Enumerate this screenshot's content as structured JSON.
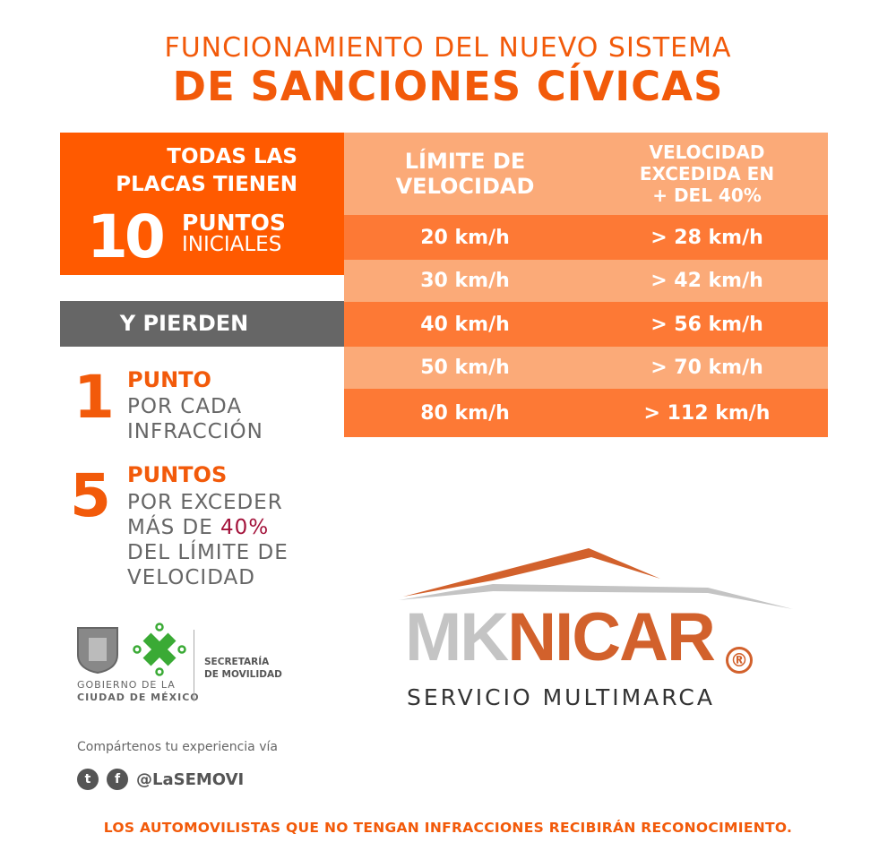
{
  "title": {
    "line1": "FUNCIONAMIENTO DEL NUEVO SISTEMA",
    "line2": "DE SANCIONES CÍVICAS"
  },
  "intro": {
    "line1": "TODAS LAS",
    "line2": "PLACAS TIENEN",
    "number": "10",
    "unit": "PUNTOS",
    "unit2": "INICIALES"
  },
  "lose_label": "Y PIERDEN",
  "penalties": [
    {
      "number": "1",
      "heading": "PUNTO",
      "lines": [
        "POR CADA",
        "INFRACCIÓN"
      ]
    },
    {
      "number": "5",
      "heading": "PUNTOS",
      "line1": "POR EXCEDER",
      "line2_pre": "MÁS DE ",
      "line2_hl": "40%",
      "line3": "DEL LÍMITE DE",
      "line4": "VELOCIDAD"
    }
  ],
  "table": {
    "headers": [
      [
        "LÍMITE DE",
        "VELOCIDAD"
      ],
      [
        "VELOCIDAD",
        "EXCEDIDA EN",
        "+ DEL 40%"
      ]
    ],
    "rows": [
      [
        "20 km/h",
        "> 28 km/h"
      ],
      [
        "30 km/h",
        "> 42 km/h"
      ],
      [
        "40 km/h",
        "> 56 km/h"
      ],
      [
        "50 km/h",
        "> 70 km/h"
      ],
      [
        "80 km/h",
        "> 112 km/h"
      ]
    ]
  },
  "gov": {
    "line1": "GOBIERNO DE LA",
    "line2": "CIUDAD DE MÉXICO",
    "sec1": "SECRETARÍA",
    "sec2": "DE MOVILIDAD"
  },
  "social": {
    "text": "Compártenos tu experiencia vía",
    "handle": "@LaSEMOVI",
    "twitter_icon": "t",
    "facebook_icon": "f"
  },
  "brand": {
    "mk": "MK",
    "nicar": "NICAR",
    "reg": "®",
    "tagline": "SERVICIO MULTIMARCA"
  },
  "footer": "LOS AUTOMOVILISTAS QUE NO TENGAN INFRACCIONES RECIBIRÁN RECONOCIMIENTO.",
  "colors": {
    "orange": "#ff5a00",
    "light_row": "#fbaa78",
    "dark_row": "#fd7935",
    "gray": "#666666",
    "brand_orange": "#d2612c",
    "brand_gray": "#c4c4c4",
    "green": "#3aaa35"
  }
}
